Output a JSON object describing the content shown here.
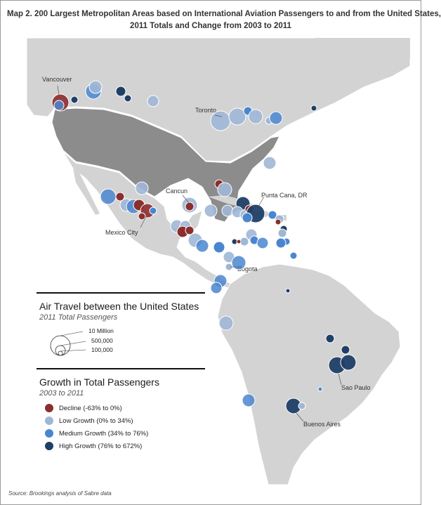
{
  "title": {
    "line1": "Map 2. 200 Largest Metropolitan Areas based on International Aviation Passengers to and from the United States,",
    "line2": "2011 Totals and Change from 2003 to 2011"
  },
  "city_labels": {
    "vancouver": "Vancouver",
    "toronto": "Toronto",
    "cancun": "Cancun",
    "punta_cana": "Punta Cana, DR",
    "mexico_city": "Mexico City",
    "bogota": "Bogota",
    "sao_paulo": "Sao Paulo",
    "buenos_aires": "Buenos Aires"
  },
  "legend": {
    "title": "Air Travel between the United States",
    "subtitle": "2011 Total Passengers",
    "size_labels": [
      "10 Million",
      "500,000",
      "100,000"
    ],
    "growth_title": "Growth in Total Passengers",
    "growth_subtitle": "2003 to 2011",
    "categories": [
      {
        "label": "Decline (-63% to 0%)",
        "color": "#8b2e2e"
      },
      {
        "label": "Low Growth (0% to 34%)",
        "color": "#9fb7d6"
      },
      {
        "label": "Medium Growth (34% to 76%)",
        "color": "#4a86d0"
      },
      {
        "label": "High Growth (76% to 672%)",
        "color": "#1f3f66"
      }
    ]
  },
  "colors": {
    "land": "#d3d3d3",
    "usa": "#8c8c8c",
    "water": "#ffffff"
  },
  "source": "Source: Brookings analysis of Sabre data"
}
